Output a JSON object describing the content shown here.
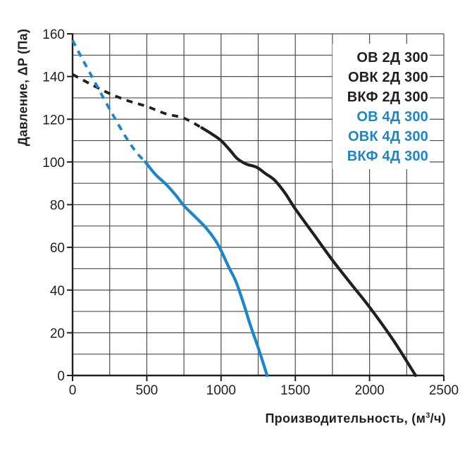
{
  "chart_data": {
    "type": "line",
    "title": "",
    "xlabel_prefix": "Производительность, (м",
    "xlabel_sup": "3",
    "xlabel_suffix": "/ч)",
    "ylabel": "Давление, ΔP (Па)",
    "xlim": [
      0,
      2500
    ],
    "ylim": [
      0,
      160
    ],
    "x_grid_step": 250,
    "y_grid_step": 10,
    "x_ticks": [
      0,
      500,
      1000,
      1500,
      2000,
      2500
    ],
    "y_ticks": [
      0,
      20,
      40,
      60,
      80,
      100,
      120,
      140,
      160
    ],
    "grid_on": true,
    "grid_color": "#4d4d4f",
    "axis_color": "#231f20",
    "text_color": "#231f20",
    "legend_position": "top-right",
    "series": [
      {
        "name": "ОВ / ОВК / ВКФ 2Д 300",
        "color": "#231f20",
        "line_style": "dashed-then-solid",
        "dashed_points": [
          [
            0,
            141
          ],
          [
            120,
            136.5
          ],
          [
            250,
            132
          ],
          [
            380,
            128.5
          ],
          [
            500,
            126
          ],
          [
            630,
            122.5
          ],
          [
            750,
            120.5
          ],
          [
            870,
            116
          ]
        ],
        "solid_points": [
          [
            870,
            116
          ],
          [
            940,
            113
          ],
          [
            1000,
            110
          ],
          [
            1060,
            105.5
          ],
          [
            1110,
            101.5
          ],
          [
            1170,
            99
          ],
          [
            1240,
            97.5
          ],
          [
            1300,
            94.5
          ],
          [
            1360,
            91.5
          ],
          [
            1430,
            85.5
          ],
          [
            1500,
            78
          ],
          [
            1620,
            66.5
          ],
          [
            1750,
            54
          ],
          [
            1880,
            42.5
          ],
          [
            2000,
            32
          ],
          [
            2160,
            16.5
          ],
          [
            2310,
            0
          ]
        ]
      },
      {
        "name": "ОВ / ОВК / ВКФ 4Д 300",
        "color": "#1b86c9",
        "line_style": "dashed-then-solid",
        "dashed_points": [
          [
            0,
            157
          ],
          [
            60,
            149
          ],
          [
            130,
            140
          ],
          [
            200,
            131
          ],
          [
            280,
            121
          ],
          [
            360,
            111.5
          ],
          [
            430,
            104.5
          ],
          [
            490,
            100
          ]
        ],
        "solid_points": [
          [
            490,
            100
          ],
          [
            560,
            94
          ],
          [
            630,
            89.5
          ],
          [
            700,
            84
          ],
          [
            750,
            79.5
          ],
          [
            830,
            74
          ],
          [
            900,
            69
          ],
          [
            960,
            63.5
          ],
          [
            1000,
            58.5
          ],
          [
            1050,
            51
          ],
          [
            1100,
            44
          ],
          [
            1150,
            34
          ],
          [
            1200,
            23
          ],
          [
            1255,
            12
          ],
          [
            1310,
            0
          ]
        ]
      }
    ],
    "legend": {
      "entries": [
        {
          "label": "ОВ 2Д 300",
          "color": "#231f20"
        },
        {
          "label": "ОВК 2Д 300",
          "color": "#231f20"
        },
        {
          "label": "ВКФ 2Д 300",
          "color": "#231f20"
        },
        {
          "label": "ОВ 4Д 300",
          "color": "#1b86c9"
        },
        {
          "label": "ОВК 4Д 300",
          "color": "#1b86c9"
        },
        {
          "label": "ВКФ 4Д 300",
          "color": "#1b86c9"
        }
      ]
    }
  }
}
